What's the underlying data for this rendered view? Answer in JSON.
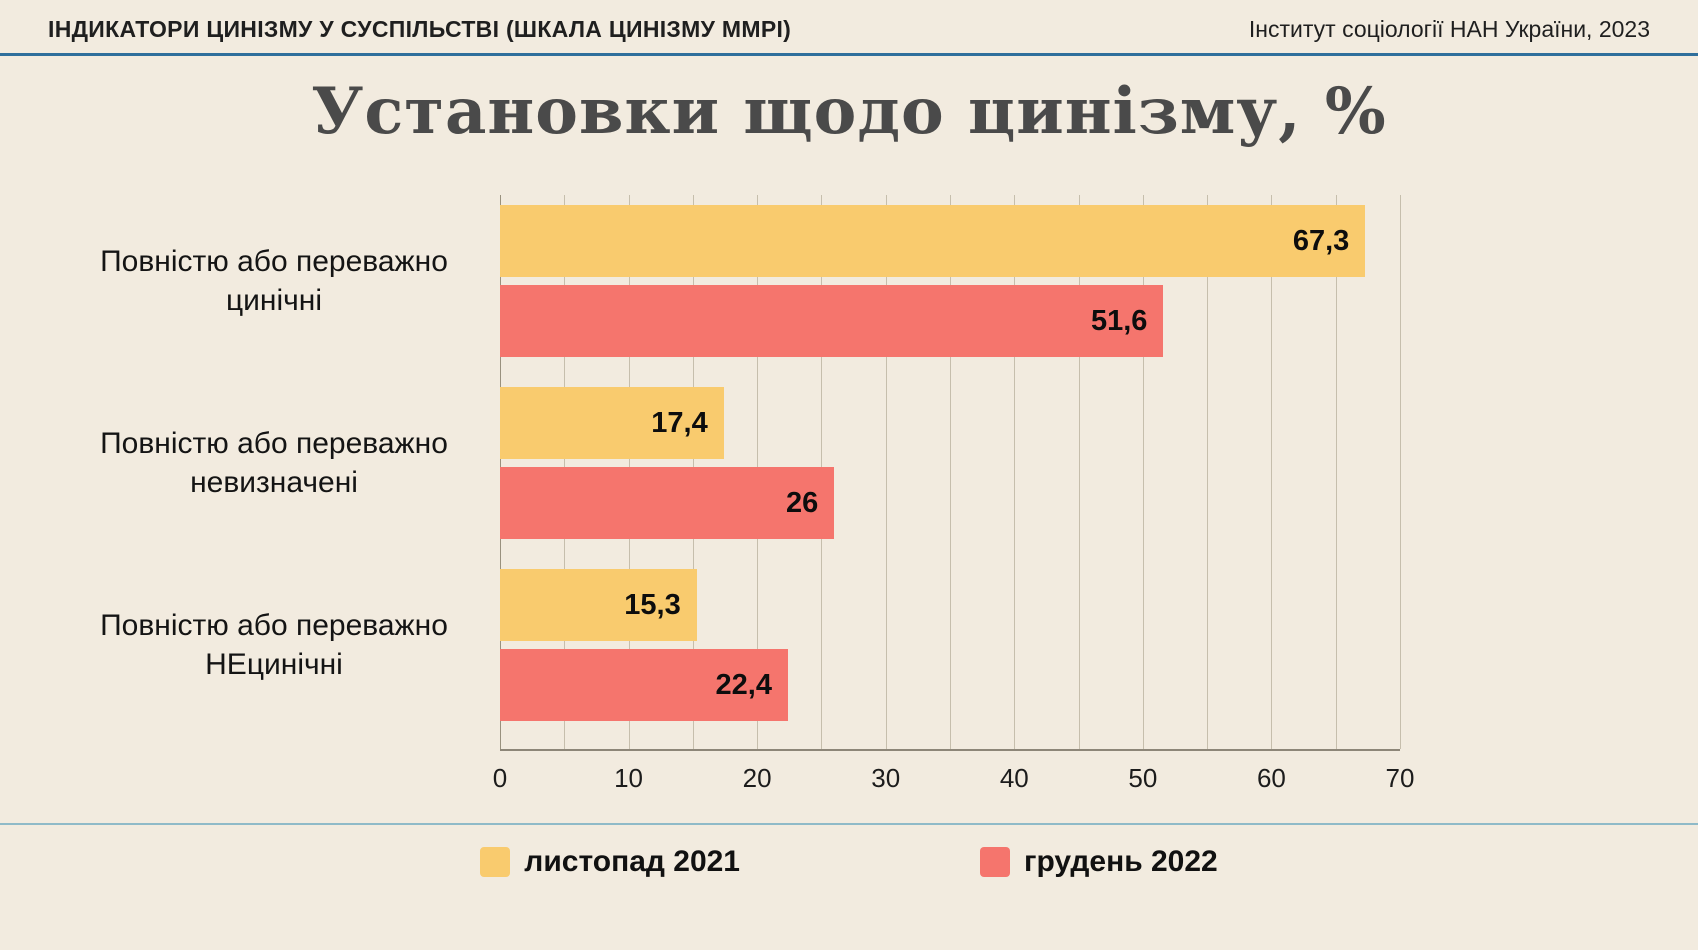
{
  "header": {
    "title": "ІНДИКАТОРИ ЦИНІЗМУ У СУСПІЛЬСТВІ (ШКАЛА ЦИНІЗМУ ММРІ)",
    "source": "Інститут соціології НАН України, 2023"
  },
  "main_title": "Установки щодо цинізму, %",
  "colors": {
    "background": "#f2ebdf",
    "header_rule": "#2f6f9c",
    "legend_rule": "#8fbac8",
    "series_yellow": "#f9cb6e",
    "series_red": "#f5756d",
    "title_text": "#4a4a4a"
  },
  "chart_data": {
    "type": "bar",
    "orientation": "horizontal",
    "title": "Установки щодо цинізму, %",
    "categories": [
      "Повністю або переважно цинічні",
      "Повністю або переважно невизначені",
      "Повністю або переважно НЕцинічні"
    ],
    "category_lines": [
      [
        "Повністю або переважно",
        "цинічні"
      ],
      [
        "Повністю або переважно",
        "невизначені"
      ],
      [
        "Повністю або переважно",
        "НЕцинічні"
      ]
    ],
    "series": [
      {
        "name": "листопад 2021",
        "color": "#f9cb6e",
        "values": [
          67.3,
          17.4,
          15.3
        ],
        "labels": [
          "67,3",
          "17,4",
          "15,3"
        ]
      },
      {
        "name": "грудень 2022",
        "color": "#f5756d",
        "values": [
          51.6,
          26,
          22.4
        ],
        "labels": [
          "51,6",
          "26",
          "22,4"
        ]
      }
    ],
    "xlim": [
      0,
      70
    ],
    "tick_step": 10,
    "grid_step": 5,
    "ticks": [
      "0",
      "10",
      "20",
      "30",
      "40",
      "50",
      "60",
      "70"
    ],
    "grid": true,
    "legend_position": "bottom",
    "value_labels": "inside-end"
  }
}
